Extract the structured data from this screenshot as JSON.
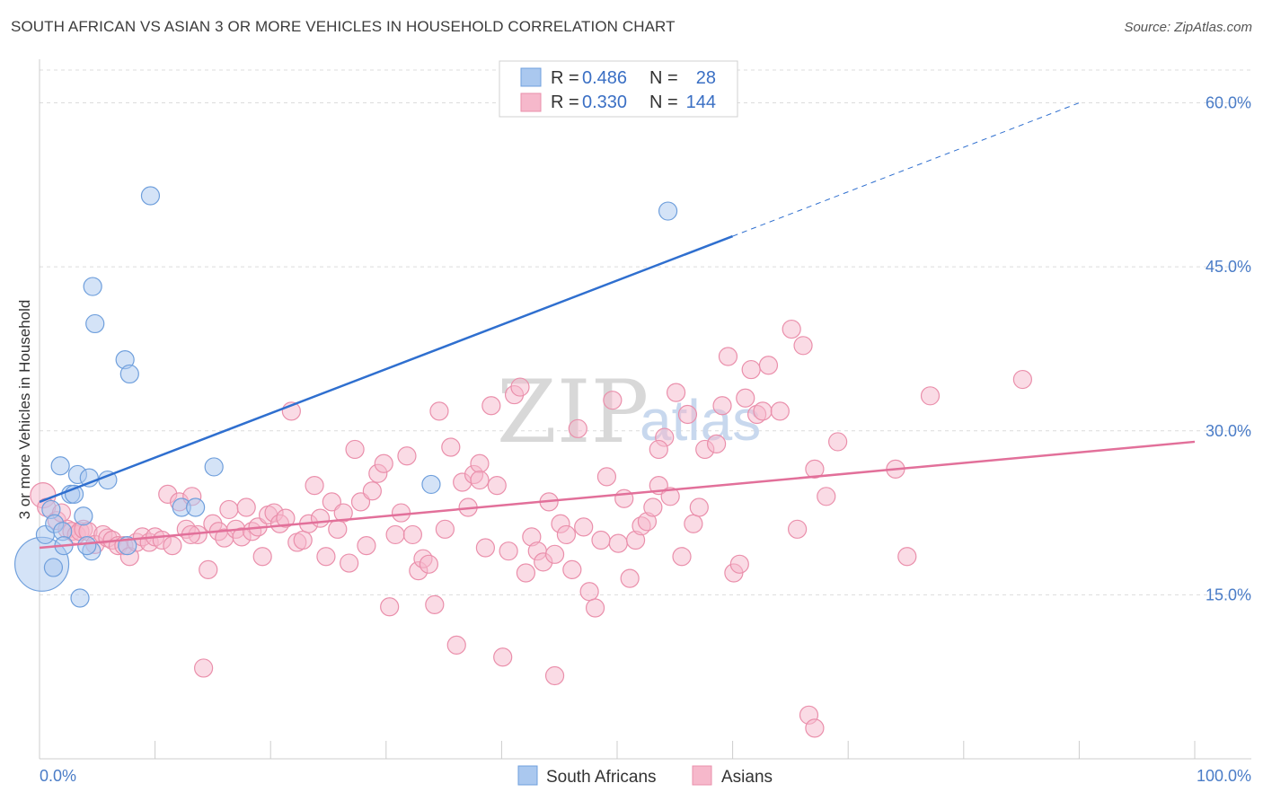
{
  "title": "SOUTH AFRICAN VS ASIAN 3 OR MORE VEHICLES IN HOUSEHOLD CORRELATION CHART",
  "source": "Source: ZipAtlas.com",
  "watermark": {
    "zip": "ZIP",
    "atlas": "atlas"
  },
  "colors": {
    "south_african_fill": "#aac8ef",
    "south_african_stroke": "#6f9fdc",
    "south_african_line": "#2f6fcf",
    "asian_fill": "#f6b8cb",
    "asian_stroke": "#ea8fab",
    "asian_line": "#e2709a",
    "grid": "#dcdcdc",
    "tick_label": "#4a7cc7"
  },
  "legend": {
    "rows": [
      {
        "r_label": "R =",
        "r_value": "0.486",
        "n_label": "N =",
        "n_value": "28",
        "series": "south_african"
      },
      {
        "r_label": "R =",
        "r_value": "0.330",
        "n_label": "N =",
        "n_value": "144",
        "series": "asian"
      }
    ]
  },
  "bottom_legend": [
    "South Africans",
    "Asians"
  ],
  "chart_data": {
    "type": "scatter",
    "xlabel": "",
    "ylabel": "3 or more Vehicles in Household",
    "xlim": [
      0,
      100
    ],
    "ylim": [
      0,
      63
    ],
    "x_tick_labels": [
      "0.0%",
      "100.0%"
    ],
    "y_ticks": [
      15,
      30,
      45,
      60
    ],
    "y_tick_labels": [
      "15.0%",
      "30.0%",
      "45.0%",
      "60.0%"
    ],
    "series": [
      {
        "name": "South Africans",
        "r": 0.486,
        "n": 28,
        "trend": {
          "x0": 0,
          "y0": 23.5,
          "x1": 60,
          "y1": 47.8,
          "dash_to_x": 90,
          "dash_to_y": 60.0
        },
        "points": [
          [
            0.2,
            17.8,
            30
          ],
          [
            0.5,
            20.5,
            10
          ],
          [
            1.0,
            22.8,
            10
          ],
          [
            1.3,
            21.5,
            10
          ],
          [
            1.2,
            17.5,
            10
          ],
          [
            1.8,
            26.8,
            10
          ],
          [
            2.0,
            20.8,
            10
          ],
          [
            2.1,
            19.5,
            10
          ],
          [
            2.7,
            24.2,
            10
          ],
          [
            3.0,
            24.2,
            10
          ],
          [
            3.3,
            26.0,
            10
          ],
          [
            3.5,
            14.7,
            10
          ],
          [
            3.8,
            22.2,
            10
          ],
          [
            4.3,
            25.7,
            10
          ],
          [
            4.5,
            19.0,
            10
          ],
          [
            4.6,
            43.2,
            10
          ],
          [
            4.8,
            39.8,
            10
          ],
          [
            5.9,
            25.5,
            10
          ],
          [
            7.4,
            36.5,
            10
          ],
          [
            7.8,
            35.2,
            10
          ],
          [
            7.6,
            19.5,
            10
          ],
          [
            9.6,
            51.5,
            10
          ],
          [
            12.3,
            23.0,
            10
          ],
          [
            13.5,
            23.0,
            10
          ],
          [
            15.1,
            26.7,
            10
          ],
          [
            33.9,
            25.1,
            10
          ],
          [
            54.4,
            50.1,
            10
          ],
          [
            4.1,
            19.5,
            10
          ]
        ]
      },
      {
        "name": "Asians",
        "r": 0.33,
        "n": 144,
        "trend": {
          "x0": 0,
          "y0": 19.3,
          "x1": 100,
          "y1": 29.0
        },
        "points": [
          [
            0.3,
            24.1,
            14
          ],
          [
            0.6,
            23.0,
            10
          ],
          [
            1.5,
            21.8,
            10
          ],
          [
            1.9,
            22.5,
            10
          ],
          [
            2.4,
            21.0,
            10
          ],
          [
            2.8,
            20.8,
            10
          ],
          [
            3.2,
            20.5,
            10
          ],
          [
            3.5,
            20.8,
            10
          ],
          [
            3.8,
            21.0,
            10
          ],
          [
            4.2,
            20.8,
            10
          ],
          [
            4.8,
            19.6,
            10
          ],
          [
            5.5,
            20.5,
            10
          ],
          [
            5.9,
            20.2,
            10
          ],
          [
            6.3,
            20.0,
            10
          ],
          [
            6.8,
            19.5,
            10
          ],
          [
            7.3,
            19.5,
            10
          ],
          [
            7.8,
            18.5,
            10
          ],
          [
            8.4,
            19.8,
            10
          ],
          [
            8.9,
            20.3,
            10
          ],
          [
            9.5,
            19.8,
            10
          ],
          [
            10.0,
            20.3,
            10
          ],
          [
            10.6,
            20.0,
            10
          ],
          [
            11.1,
            24.2,
            10
          ],
          [
            11.5,
            19.5,
            10
          ],
          [
            12.1,
            23.5,
            10
          ],
          [
            12.7,
            21.0,
            10
          ],
          [
            13.2,
            24.0,
            10
          ],
          [
            13.7,
            20.5,
            10
          ],
          [
            14.2,
            8.3,
            10
          ],
          [
            14.6,
            17.3,
            10
          ],
          [
            15.0,
            21.5,
            10
          ],
          [
            15.5,
            20.8,
            10
          ],
          [
            16.0,
            20.2,
            10
          ],
          [
            16.4,
            22.8,
            10
          ],
          [
            17.0,
            21.0,
            10
          ],
          [
            17.5,
            20.3,
            10
          ],
          [
            17.9,
            23.0,
            10
          ],
          [
            18.4,
            20.8,
            10
          ],
          [
            18.9,
            21.2,
            10
          ],
          [
            19.3,
            18.5,
            10
          ],
          [
            19.8,
            22.3,
            10
          ],
          [
            20.3,
            22.5,
            10
          ],
          [
            20.8,
            21.5,
            10
          ],
          [
            21.3,
            22.0,
            10
          ],
          [
            21.8,
            31.8,
            10
          ],
          [
            22.3,
            19.8,
            10
          ],
          [
            22.8,
            20.0,
            10
          ],
          [
            23.3,
            21.5,
            10
          ],
          [
            23.8,
            25.0,
            10
          ],
          [
            24.3,
            22.0,
            10
          ],
          [
            24.8,
            18.5,
            10
          ],
          [
            25.3,
            23.5,
            10
          ],
          [
            25.8,
            21.0,
            10
          ],
          [
            26.3,
            22.5,
            10
          ],
          [
            26.8,
            17.9,
            10
          ],
          [
            27.3,
            28.3,
            10
          ],
          [
            27.8,
            23.5,
            10
          ],
          [
            28.3,
            19.5,
            10
          ],
          [
            28.8,
            24.5,
            10
          ],
          [
            29.3,
            26.1,
            10
          ],
          [
            29.8,
            27.0,
            10
          ],
          [
            30.3,
            13.9,
            10
          ],
          [
            30.8,
            20.5,
            10
          ],
          [
            31.3,
            22.5,
            10
          ],
          [
            31.8,
            27.7,
            10
          ],
          [
            32.3,
            20.5,
            10
          ],
          [
            32.8,
            17.2,
            10
          ],
          [
            33.2,
            18.3,
            10
          ],
          [
            33.7,
            17.8,
            10
          ],
          [
            34.2,
            14.1,
            10
          ],
          [
            34.6,
            31.8,
            10
          ],
          [
            35.1,
            21.0,
            10
          ],
          [
            35.6,
            28.5,
            10
          ],
          [
            36.1,
            10.4,
            10
          ],
          [
            36.6,
            25.3,
            10
          ],
          [
            37.1,
            23.0,
            10
          ],
          [
            37.6,
            26.0,
            10
          ],
          [
            38.1,
            27.0,
            10
          ],
          [
            38.6,
            19.3,
            10
          ],
          [
            39.1,
            32.3,
            10
          ],
          [
            39.6,
            25.0,
            10
          ],
          [
            40.1,
            9.3,
            10
          ],
          [
            40.6,
            19.0,
            10
          ],
          [
            41.1,
            33.3,
            10
          ],
          [
            41.6,
            34.0,
            10
          ],
          [
            42.1,
            17.0,
            10
          ],
          [
            42.6,
            20.3,
            10
          ],
          [
            43.1,
            19.0,
            10
          ],
          [
            43.6,
            18.0,
            10
          ],
          [
            44.1,
            23.5,
            10
          ],
          [
            44.6,
            7.6,
            10
          ],
          [
            45.1,
            21.5,
            10
          ],
          [
            45.6,
            20.5,
            10
          ],
          [
            46.1,
            17.3,
            10
          ],
          [
            46.6,
            30.2,
            10
          ],
          [
            47.1,
            21.2,
            10
          ],
          [
            47.6,
            15.3,
            10
          ],
          [
            48.1,
            13.8,
            10
          ],
          [
            48.6,
            20.0,
            10
          ],
          [
            49.1,
            25.8,
            10
          ],
          [
            49.6,
            32.8,
            10
          ],
          [
            50.1,
            19.7,
            10
          ],
          [
            50.6,
            23.8,
            10
          ],
          [
            51.1,
            16.5,
            10
          ],
          [
            51.6,
            20.0,
            10
          ],
          [
            52.1,
            21.3,
            10
          ],
          [
            52.6,
            21.7,
            10
          ],
          [
            53.1,
            23.0,
            10
          ],
          [
            53.6,
            25.0,
            10
          ],
          [
            54.1,
            29.4,
            10
          ],
          [
            54.6,
            24.0,
            10
          ],
          [
            55.1,
            33.5,
            10
          ],
          [
            55.6,
            18.5,
            10
          ],
          [
            56.1,
            31.5,
            10
          ],
          [
            56.6,
            21.5,
            10
          ],
          [
            57.1,
            23.0,
            10
          ],
          [
            57.6,
            28.3,
            10
          ],
          [
            58.6,
            28.8,
            10
          ],
          [
            59.1,
            32.3,
            10
          ],
          [
            59.6,
            36.8,
            10
          ],
          [
            60.1,
            17.0,
            10
          ],
          [
            60.6,
            17.8,
            10
          ],
          [
            61.1,
            33.0,
            10
          ],
          [
            61.6,
            35.6,
            10
          ],
          [
            62.1,
            31.5,
            10
          ],
          [
            62.6,
            31.8,
            10
          ],
          [
            63.1,
            36.0,
            10
          ],
          [
            64.1,
            31.8,
            10
          ],
          [
            65.1,
            39.3,
            10
          ],
          [
            65.6,
            21.0,
            10
          ],
          [
            66.1,
            37.8,
            10
          ],
          [
            67.1,
            26.5,
            10
          ],
          [
            68.1,
            24.0,
            10
          ],
          [
            69.1,
            29.0,
            10
          ],
          [
            74.1,
            26.5,
            10
          ],
          [
            75.1,
            18.5,
            10
          ],
          [
            77.1,
            33.2,
            10
          ],
          [
            85.1,
            34.7,
            10
          ],
          [
            66.6,
            4.0,
            10
          ],
          [
            67.1,
            2.8,
            10
          ],
          [
            44.6,
            18.7,
            10
          ],
          [
            38.1,
            25.5,
            10
          ],
          [
            53.6,
            28.3,
            10
          ],
          [
            13.1,
            20.5,
            10
          ]
        ]
      }
    ]
  }
}
